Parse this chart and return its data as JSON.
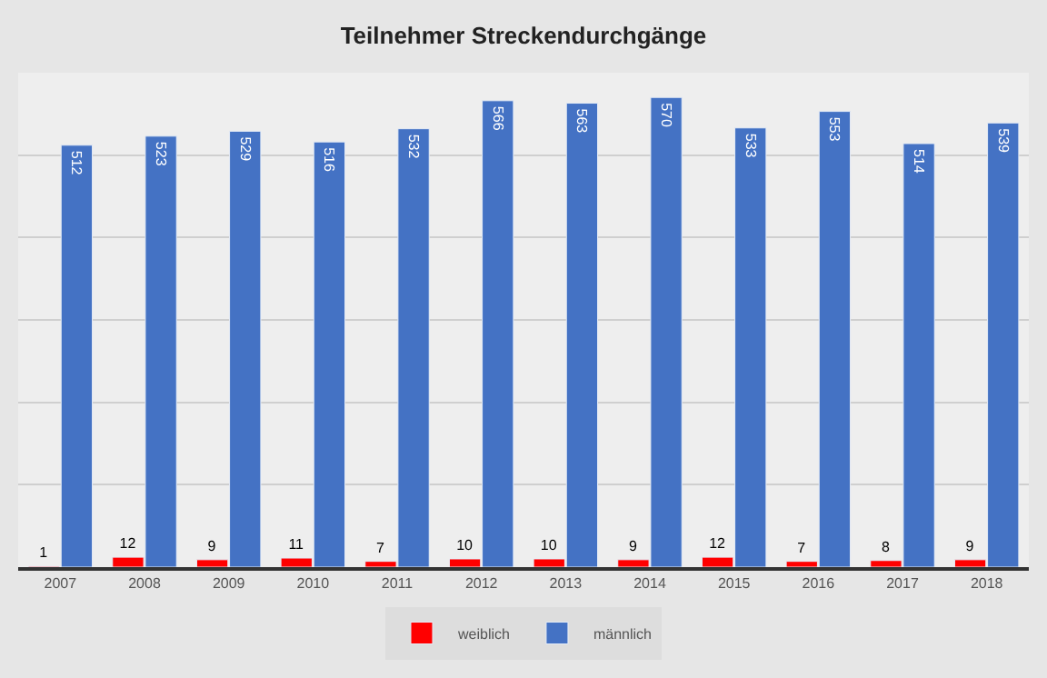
{
  "chart_data": {
    "type": "bar",
    "title": "Teilnehmer Streckendurchgänge",
    "categories": [
      "2007",
      "2008",
      "2009",
      "2010",
      "2011",
      "2012",
      "2013",
      "2014",
      "2015",
      "2016",
      "2017",
      "2018"
    ],
    "series": [
      {
        "name": "weiblich",
        "color": "#ff0000",
        "values": [
          1,
          12,
          9,
          11,
          7,
          10,
          10,
          9,
          12,
          7,
          8,
          9
        ]
      },
      {
        "name": "männlich",
        "color": "#4472c4",
        "values": [
          512,
          523,
          529,
          516,
          532,
          566,
          563,
          570,
          533,
          553,
          514,
          539
        ]
      }
    ],
    "ylim": [
      0,
      600
    ],
    "yticks": [
      {
        "value": 0,
        "label": null
      },
      {
        "value": 100,
        "label": null
      },
      {
        "value": 200,
        "label": null
      },
      {
        "value": 300,
        "label": null
      },
      {
        "value": 400,
        "label": null
      },
      {
        "value": 500,
        "label": null
      },
      {
        "value": 600,
        "label": null
      }
    ],
    "tick_labels": "x",
    "grid": "y",
    "legend": "bottom",
    "data_labels": true
  }
}
